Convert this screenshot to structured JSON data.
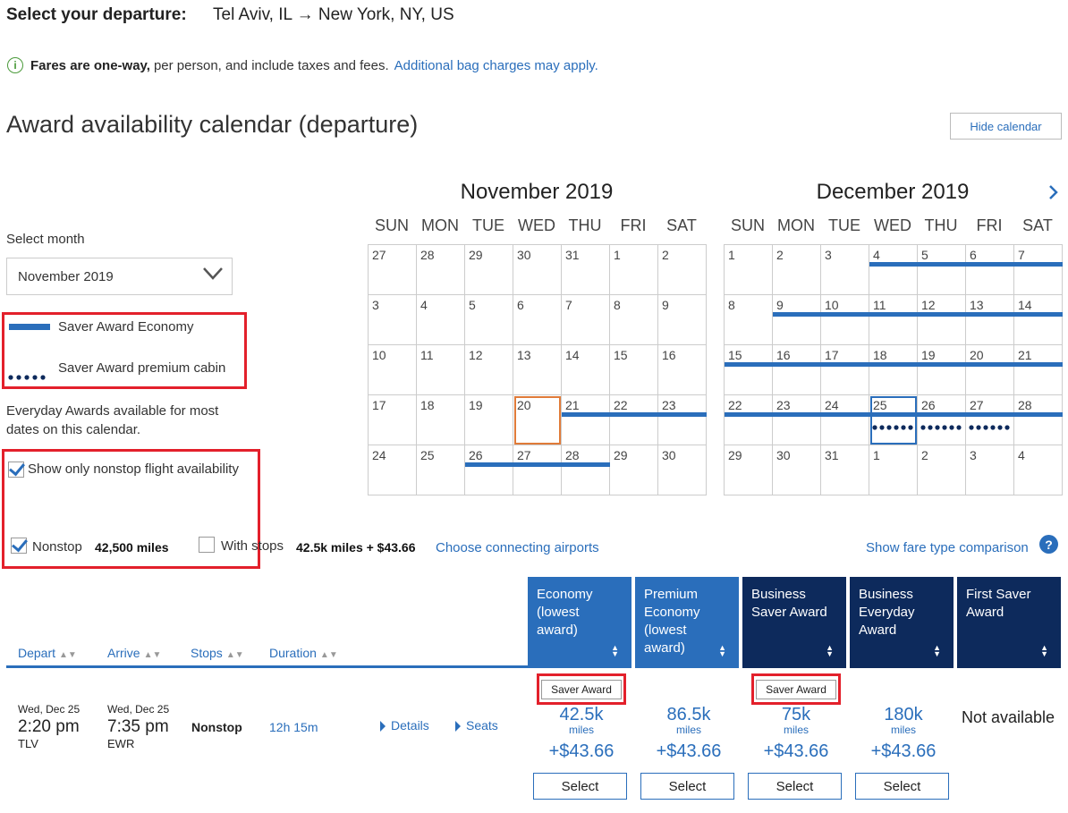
{
  "header": {
    "label": "Select your departure:",
    "route": "Tel Aviv, IL → New York, NY, US"
  },
  "info": {
    "bold": "Fares are one-way,",
    "text": "per person, and include taxes and fees.",
    "link": "Additional bag charges may apply."
  },
  "calendar": {
    "title": "Award availability calendar (departure)",
    "hide_label": "Hide calendar",
    "dow": [
      "SUN",
      "MON",
      "TUE",
      "WED",
      "THU",
      "FRI",
      "SAT"
    ],
    "months": [
      {
        "name": "November 2019",
        "weeks": [
          [
            "27",
            "28",
            "29",
            "30",
            "31",
            "1",
            "2"
          ],
          [
            "3",
            "4",
            "5",
            "6",
            "7",
            "8",
            "9"
          ],
          [
            "10",
            "11",
            "12",
            "13",
            "14",
            "15",
            "16"
          ],
          [
            "17",
            "18",
            "19",
            "20",
            "21",
            "22",
            "23"
          ],
          [
            "24",
            "25",
            "26",
            "27",
            "28",
            "29",
            "30"
          ]
        ]
      },
      {
        "name": "December 2019",
        "weeks": [
          [
            "1",
            "2",
            "3",
            "4",
            "5",
            "6",
            "7"
          ],
          [
            "8",
            "9",
            "10",
            "11",
            "12",
            "13",
            "14"
          ],
          [
            "15",
            "16",
            "17",
            "18",
            "19",
            "20",
            "21"
          ],
          [
            "22",
            "23",
            "24",
            "25",
            "26",
            "27",
            "28"
          ],
          [
            "29",
            "30",
            "31",
            "1",
            "2",
            "3",
            "4"
          ]
        ]
      }
    ],
    "next_icon": "chevron-right-icon",
    "colors": {
      "saver_economy": "#2a6ebb",
      "premium_dots": "#0d2a5c",
      "today": "#e07b39",
      "selected": "#2a6ebb"
    }
  },
  "sidebar": {
    "select_month_label": "Select month",
    "select_month_value": "November 2019",
    "legend": {
      "economy": "Saver Award Economy",
      "premium": "Saver Award premium cabin"
    },
    "everyday_note": "Everyday Awards available for most dates on this calendar.",
    "nonstop_only": "Show only nonstop flight availability"
  },
  "filters": {
    "nonstop_label": "Nonstop",
    "nonstop_price": "42,500 miles",
    "with_stops_label": "With stops",
    "with_stops_price": "42.5k miles + $43.66",
    "connecting_link": "Choose connecting airports",
    "fare_comparison": "Show fare type comparison"
  },
  "table": {
    "columns": [
      "Depart",
      "Arrive",
      "Stops",
      "Duration"
    ],
    "fare_columns": [
      {
        "label": "Economy (lowest award)",
        "color": "#2a6ebb"
      },
      {
        "label": "Premium Economy (lowest award)",
        "color": "#2a6ebb"
      },
      {
        "label": "Business Saver Award",
        "color": "#0d2a5c"
      },
      {
        "label": "Business Everyday Award",
        "color": "#0d2a5c"
      },
      {
        "label": "First Saver Award",
        "color": "#0d2a5c"
      }
    ],
    "row": {
      "depart_date": "Wed, Dec 25",
      "depart_time": "2:20 pm",
      "depart_code": "TLV",
      "arrive_date": "Wed, Dec 25",
      "arrive_time": "7:35 pm",
      "arrive_code": "EWR",
      "stops": "Nonstop",
      "duration": "12h 15m",
      "details": "Details",
      "seats": "Seats",
      "fares": [
        {
          "tag": "Saver Award",
          "miles": "42.5k",
          "unit": "miles",
          "fee": "+$43.66",
          "button": "Select"
        },
        {
          "tag": "",
          "miles": "86.5k",
          "unit": "miles",
          "fee": "+$43.66",
          "button": "Select"
        },
        {
          "tag": "Saver Award",
          "miles": "75k",
          "unit": "miles",
          "fee": "+$43.66",
          "button": "Select"
        },
        {
          "tag": "",
          "miles": "180k",
          "unit": "miles",
          "fee": "+$43.66",
          "button": "Select"
        },
        {
          "tag": "",
          "not_available": "Not available"
        }
      ]
    }
  }
}
